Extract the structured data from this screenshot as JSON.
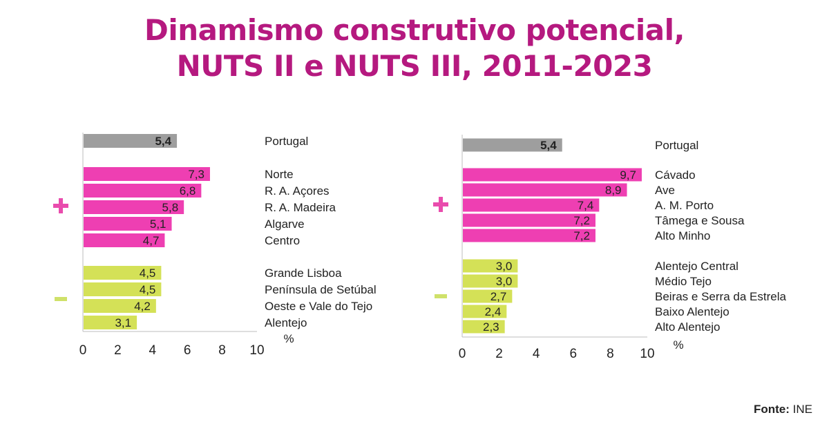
{
  "title_line1": "Dinamismo construtivo potencial,",
  "title_line2": "NUTS II e NUTS III, 2011-2023",
  "source_label": "Fonte:",
  "source_value": "INE",
  "colors": {
    "title": "#b5197f",
    "reference": "#9e9e9e",
    "above": "#ee3fb2",
    "below": "#d4e157",
    "plus_sign": "#e94cad",
    "minus_sign": "#cfe16a"
  },
  "chart_data": [
    {
      "type": "bar",
      "orientation": "horizontal",
      "title": "",
      "xlabel": "%",
      "xlim": [
        0,
        10
      ],
      "xticks": [
        "0",
        "2",
        "4",
        "6",
        "8",
        "10"
      ],
      "groups": [
        {
          "symbol": "",
          "color_key": "reference",
          "items": [
            {
              "label": "Portugal",
              "value": 5.4,
              "text": "5,4"
            }
          ]
        },
        {
          "symbol": "+",
          "color_key": "above",
          "items": [
            {
              "label": "Norte",
              "value": 7.3,
              "text": "7,3"
            },
            {
              "label": "R. A. Açores",
              "value": 6.8,
              "text": "6,8"
            },
            {
              "label": "R. A. Madeira",
              "value": 5.8,
              "text": "5,8"
            },
            {
              "label": "Algarve",
              "value": 5.1,
              "text": "5,1"
            },
            {
              "label": "Centro",
              "value": 4.7,
              "text": "4,7"
            }
          ]
        },
        {
          "symbol": "-",
          "color_key": "below",
          "items": [
            {
              "label": "Grande Lisboa",
              "value": 4.5,
              "text": "4,5"
            },
            {
              "label": "Península de Setúbal",
              "value": 4.5,
              "text": "4,5"
            },
            {
              "label": "Oeste e Vale do Tejo",
              "value": 4.2,
              "text": "4,2"
            },
            {
              "label": "Alentejo",
              "value": 3.1,
              "text": "3,1"
            }
          ]
        }
      ]
    },
    {
      "type": "bar",
      "orientation": "horizontal",
      "title": "",
      "xlabel": "%",
      "xlim": [
        0,
        10
      ],
      "xticks": [
        "0",
        "2",
        "4",
        "6",
        "8",
        "10"
      ],
      "groups": [
        {
          "symbol": "",
          "color_key": "reference",
          "items": [
            {
              "label": "Portugal",
              "value": 5.4,
              "text": "5,4"
            }
          ]
        },
        {
          "symbol": "+",
          "color_key": "above",
          "items": [
            {
              "label": "Cávado",
              "value": 9.7,
              "text": "9,7"
            },
            {
              "label": "Ave",
              "value": 8.9,
              "text": "8,9"
            },
            {
              "label": "A. M. Porto",
              "value": 7.4,
              "text": "7,4"
            },
            {
              "label": "Tâmega e Sousa",
              "value": 7.2,
              "text": "7,2"
            },
            {
              "label": "Alto Minho",
              "value": 7.2,
              "text": "7,2"
            }
          ]
        },
        {
          "symbol": "-",
          "color_key": "below",
          "items": [
            {
              "label": "Alentejo Central",
              "value": 3.0,
              "text": "3,0"
            },
            {
              "label": "Médio Tejo",
              "value": 3.0,
              "text": "3,0"
            },
            {
              "label": "Beiras e Serra da Estrela",
              "value": 2.7,
              "text": "2,7"
            },
            {
              "label": "Baixo Alentejo",
              "value": 2.4,
              "text": "2,4"
            },
            {
              "label": "Alto Alentejo",
              "value": 2.3,
              "text": "2,3"
            }
          ]
        }
      ]
    }
  ]
}
